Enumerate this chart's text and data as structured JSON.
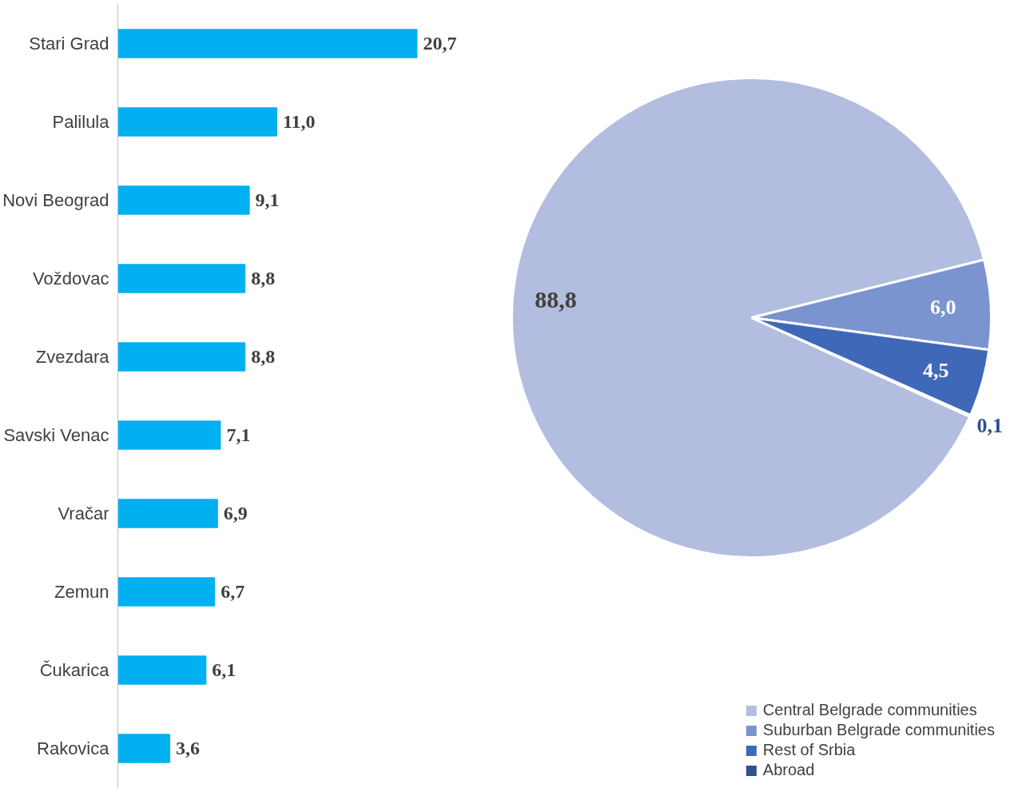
{
  "chart_data": [
    {
      "type": "bar",
      "orientation": "horizontal",
      "categories": [
        "Stari Grad",
        "Palilula",
        "Novi Beograd",
        "Voždovac",
        "Zvezdara",
        "Savski Venac",
        "Vračar",
        "Zemun",
        "Čukarica",
        "Rakovica"
      ],
      "values": [
        20.7,
        11.0,
        9.1,
        8.8,
        8.8,
        7.1,
        6.9,
        6.7,
        6.1,
        3.6
      ],
      "value_labels": [
        "20,7",
        "11,0",
        "9,1",
        "8,8",
        "8,8",
        "7,1",
        "6,9",
        "6,7",
        "6,1",
        "3,6"
      ],
      "color": "#00b0f0"
    },
    {
      "type": "pie",
      "categories": [
        "Central Belgrade communities",
        "Suburban Belgrade communities",
        "Rest of Srbia",
        "Abroad"
      ],
      "values": [
        88.8,
        6.0,
        4.5,
        0.1
      ],
      "value_labels": [
        "88,8",
        "6,0",
        "4,5",
        "0,1"
      ],
      "colors": [
        "#b2bddf",
        "#7b93cf",
        "#3f69b8",
        "#2f4f8f"
      ],
      "legend": "bottom right"
    }
  ]
}
